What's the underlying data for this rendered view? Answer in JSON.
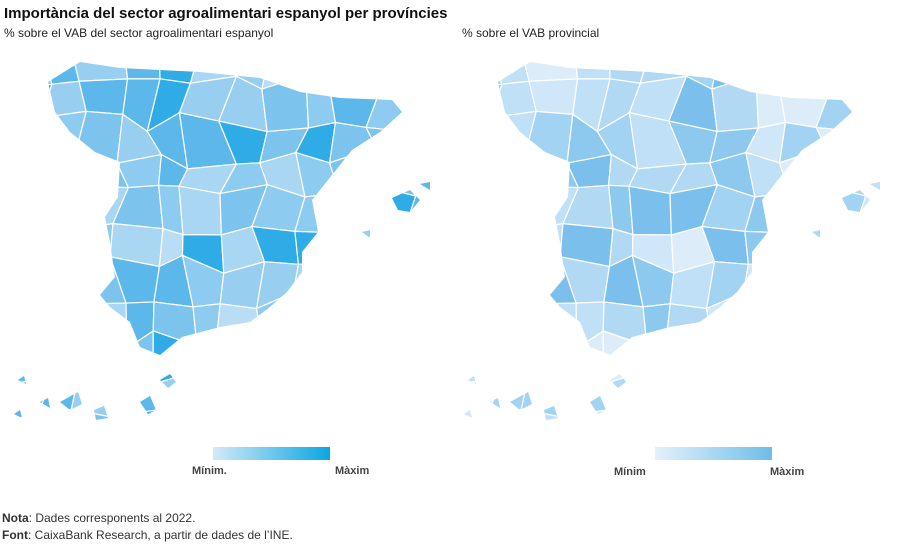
{
  "header": {
    "title": "Importància del sector agroalimentari espanyol per províncies"
  },
  "maps": [
    {
      "subtitle": "% sobre el VAB del sector agroalimentari espanyol",
      "legend": {
        "min": "Mínim.",
        "max": "Màxim"
      }
    },
    {
      "subtitle": "% sobre el VAB provincial",
      "legend": {
        "min": "Mínim",
        "max": "Màxim"
      }
    }
  ],
  "footer": {
    "note_label": "Nota",
    "note_text": ": Dades corresponents al 2022.",
    "source_label": "Font",
    "source_text": ": CaixaBank Research, a partir de dades de l’INE."
  }
}
